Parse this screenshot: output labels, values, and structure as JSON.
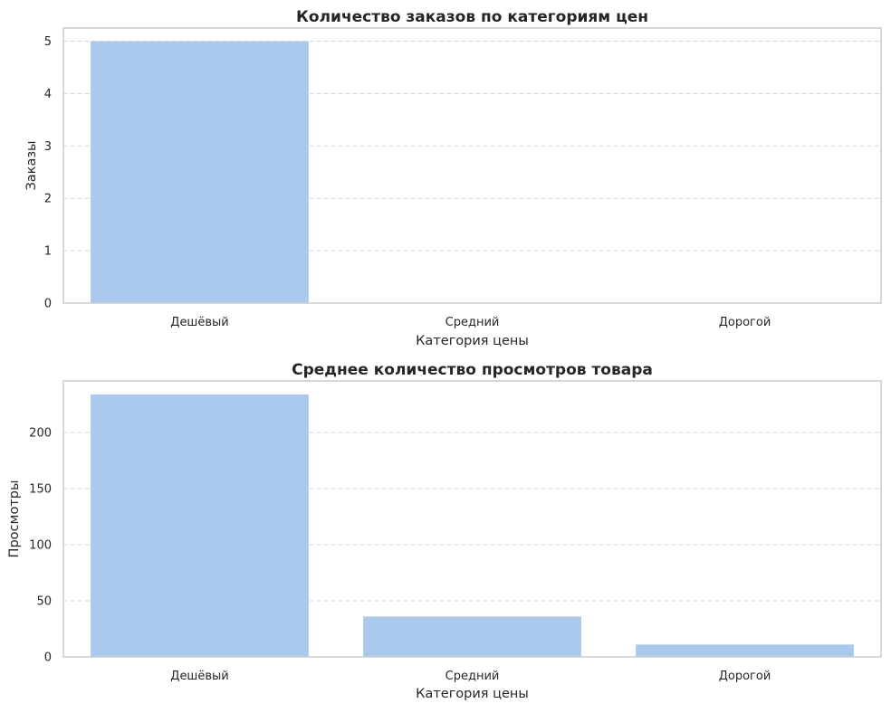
{
  "chart_data": [
    {
      "type": "bar",
      "title": "Количество заказов по категориям цен",
      "xlabel": "Категория цены",
      "ylabel": "Заказы",
      "categories": [
        "Дешёвый",
        "Средний",
        "Дорогой"
      ],
      "values": [
        5,
        0,
        0
      ],
      "ylim": [
        0,
        5.25
      ],
      "yticks": [
        0,
        1,
        2,
        3,
        4,
        5
      ],
      "grid": true,
      "bar_color": "#abc9ec",
      "grid_color": "#d7d7d7",
      "spine_color": "#cccccc"
    },
    {
      "type": "bar",
      "title": "Среднее количество просмотров товара",
      "xlabel": "Категория цены",
      "ylabel": "Просмотры",
      "categories": [
        "Дешёвый",
        "Средний",
        "Дорогой"
      ],
      "values": [
        234,
        36,
        11
      ],
      "ylim": [
        0,
        246
      ],
      "yticks": [
        0,
        50,
        100,
        150,
        200
      ],
      "grid": true,
      "bar_color": "#abc9ec",
      "grid_color": "#d7d7d7",
      "spine_color": "#cccccc"
    }
  ]
}
